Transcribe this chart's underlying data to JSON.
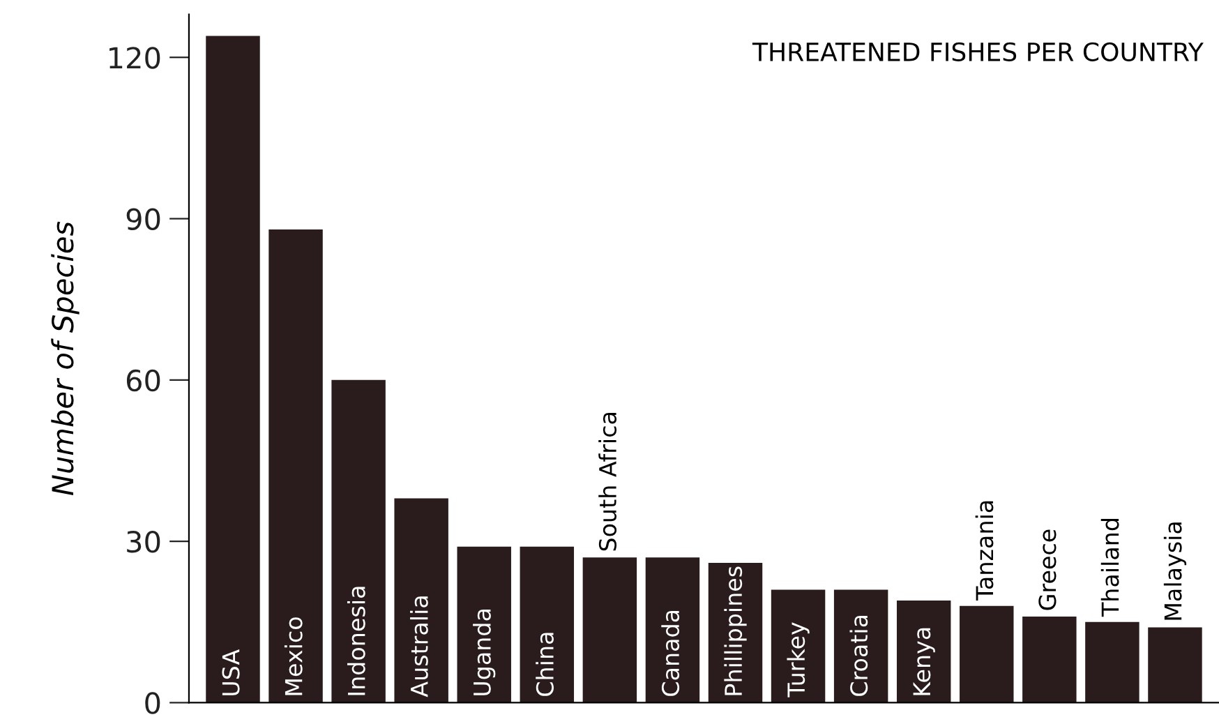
{
  "chart_data": {
    "type": "bar",
    "title": "THREATENED FISHES PER COUNTRY",
    "ylabel": "Number of Species",
    "categories": [
      "USA",
      "Mexico",
      "Indonesia",
      "Australia",
      "Uganda",
      "China",
      "South Africa",
      "Canada",
      "Phillippines",
      "Turkey",
      "Croatia",
      "Kenya",
      "Tanzania",
      "Greece",
      "Thailand",
      "Malaysia"
    ],
    "values": [
      124,
      88,
      60,
      38,
      29,
      29,
      27,
      27,
      26,
      21,
      21,
      19,
      18,
      16,
      15,
      14
    ],
    "color": "#2a1c1c",
    "ylim": [
      0,
      128
    ],
    "yticks": [
      0,
      30,
      60,
      90,
      120
    ],
    "grid": false,
    "legend": false
  }
}
